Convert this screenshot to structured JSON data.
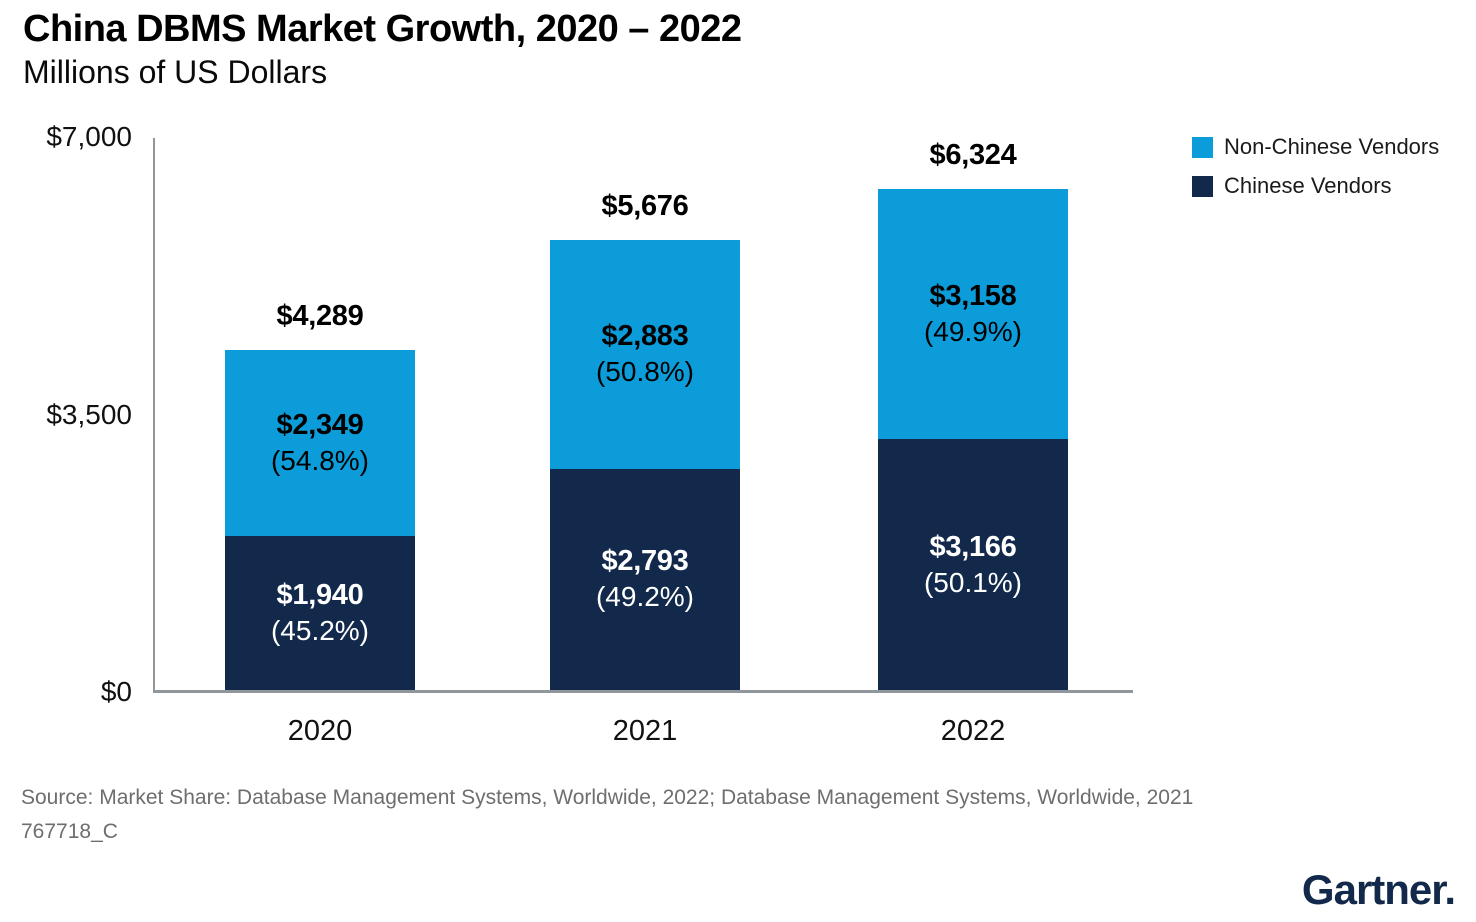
{
  "header": {
    "title": "China DBMS Market Growth, 2020 – 2022",
    "subtitle": "Millions of US Dollars"
  },
  "chart_data": {
    "type": "bar",
    "variant": "stacked",
    "title": "China DBMS Market Growth, 2020 – 2022",
    "subtitle": "Millions of US Dollars",
    "unit": "Millions of US Dollars",
    "categories": [
      "2020",
      "2021",
      "2022"
    ],
    "series": [
      {
        "name": "Chinese Vendors",
        "color": "#12294b",
        "text_color": "#ffffff",
        "values": [
          1940,
          2793,
          3166
        ],
        "value_labels": [
          "$1,940",
          "$2,793",
          "$3,166"
        ],
        "share_labels": [
          "(45.2%)",
          "(49.2%)",
          "(50.1%)"
        ]
      },
      {
        "name": "Non-Chinese Vendors",
        "color": "#0c9cd9",
        "text_color": "#000000",
        "values": [
          2349,
          2883,
          3158
        ],
        "value_labels": [
          "$2,349",
          "$2,883",
          "$3,158"
        ],
        "share_labels": [
          "(54.8%)",
          "(50.8%)",
          "(49.9%)"
        ]
      }
    ],
    "totals": [
      4289,
      5676,
      6324
    ],
    "total_labels": [
      "$4,289",
      "$5,676",
      "$6,324"
    ],
    "ylim": [
      0,
      7000
    ],
    "yticks": [
      {
        "value": 0,
        "label": "$0"
      },
      {
        "value": 3500,
        "label": "$3,500"
      },
      {
        "value": 7000,
        "label": "$7,000"
      }
    ],
    "legend": [
      {
        "label": "Non-Chinese Vendors",
        "color": "#0c9cd9"
      },
      {
        "label": "Chinese Vendors",
        "color": "#12294b"
      }
    ],
    "legend_position": "top-right",
    "grid": false
  },
  "footer": {
    "source": "Source: Market Share: Database Management Systems, Worldwide, 2022; Database Management Systems, Worldwide, 2021",
    "document_code": "767718_C"
  },
  "branding": {
    "logo_text": "Gartner."
  }
}
